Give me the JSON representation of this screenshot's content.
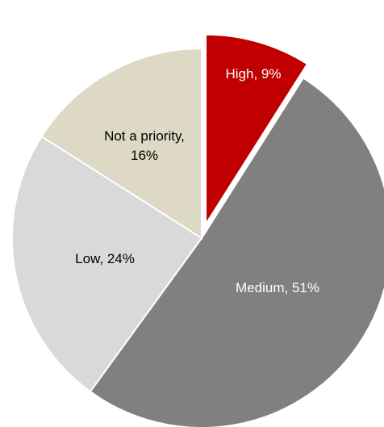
{
  "chart_data": {
    "type": "pie",
    "title": "",
    "start_angle_deg": 0,
    "direction": "clockwise",
    "slices": [
      {
        "name": "High",
        "value": 9,
        "label_lines": [
          "High, 9%"
        ],
        "color": "#c00000",
        "label_color": "#ffffff",
        "exploded": true
      },
      {
        "name": "Medium",
        "value": 51,
        "label_lines": [
          "Medium, 51%"
        ],
        "color": "#808080",
        "label_color": "#ffffff",
        "exploded": false
      },
      {
        "name": "Low",
        "value": 24,
        "label_lines": [
          "Low, 24%"
        ],
        "color": "#d9d9d9",
        "label_color": "#000000",
        "exploded": false
      },
      {
        "name": "Not a priority",
        "value": 16,
        "label_lines": [
          "Not a priority,",
          "16%"
        ],
        "color": "#ddd9c4",
        "label_color": "#000000",
        "exploded": false
      }
    ],
    "legend": "none",
    "separator_color": "#ffffff"
  }
}
